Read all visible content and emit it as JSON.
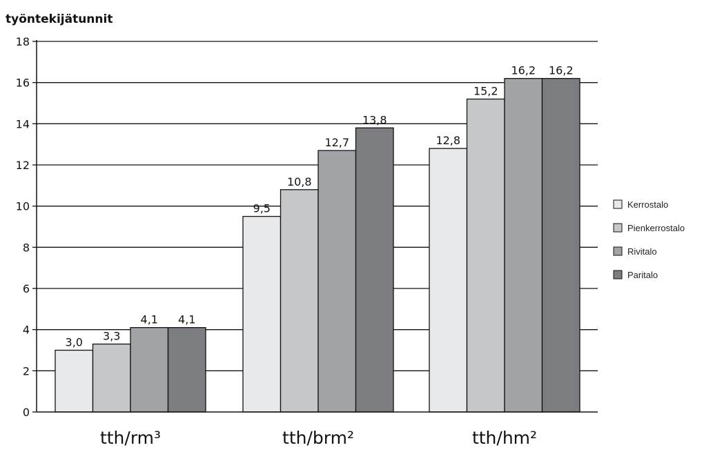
{
  "chart_data": {
    "type": "bar",
    "ylabel": "työntekijätunnit",
    "xlabel": "",
    "ylim": [
      0,
      18
    ],
    "yticks": [
      0,
      2,
      4,
      6,
      8,
      10,
      12,
      14,
      16,
      18
    ],
    "grid": "horizontal",
    "legend_position": "right",
    "categories": [
      "tth/rm³",
      "tth/brm²",
      "tth/hm²"
    ],
    "series": [
      {
        "name": "Kerrostalo",
        "color": "#e8e9eb",
        "values": [
          3.0,
          9.5,
          12.8
        ],
        "labels": [
          "3,0",
          "9,5",
          "12,8"
        ]
      },
      {
        "name": "Pienkerrostalo",
        "color": "#c6c7c9",
        "values": [
          3.3,
          10.8,
          15.2
        ],
        "labels": [
          "3,3",
          "10,8",
          "15,2"
        ]
      },
      {
        "name": "Rivitalo",
        "color": "#a2a3a6",
        "values": [
          4.1,
          12.7,
          16.2
        ],
        "labels": [
          "4,1",
          "12,7",
          "16,2"
        ]
      },
      {
        "name": "Paritalo",
        "color": "#7c7d80",
        "values": [
          4.1,
          13.8,
          16.2
        ],
        "labels": [
          "4,1",
          "13,8",
          "16,2"
        ]
      }
    ]
  }
}
